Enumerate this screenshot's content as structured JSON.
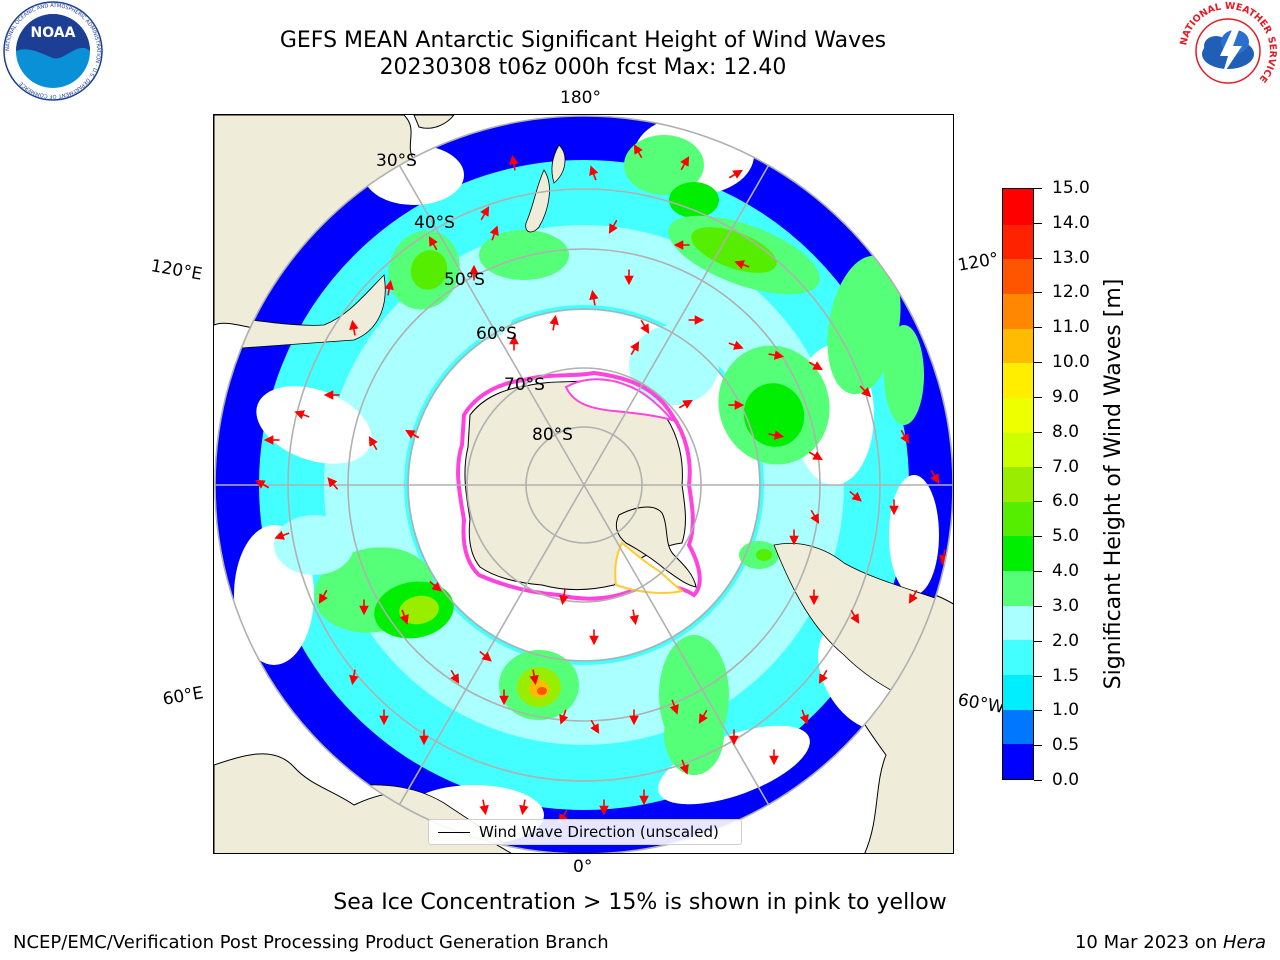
{
  "header": {
    "title_line1": "GEFS MEAN Antarctic Significant Height of Wind Waves",
    "title_line2": "20230308 t06z 000h fcst   Max: 12.40"
  },
  "logos": {
    "noaa": {
      "center_text": "NOAA",
      "ring_text": "NATIONAL OCEANIC AND ATMOSPHERIC ADMINISTRATION · U.S. DEPARTMENT OF COMMERCE",
      "icon": "noaa-seagull-logo",
      "colors": {
        "dark": "#1c3f95",
        "light": "#0a90d6"
      }
    },
    "nws": {
      "ring_text": "NATIONAL WEATHER SERVICE",
      "icon": "nws-cloud-lightning-logo",
      "colors": {
        "ring": "#e31b23",
        "cloud": "#1f5fb8"
      }
    }
  },
  "map": {
    "projection": "south-polar-stereographic",
    "longitude_labels": {
      "top": "180°",
      "left_upper": "120°E",
      "right_upper": "120°",
      "left_lower": "60°E",
      "right_lower": "60°W",
      "bottom": "0°"
    },
    "latitude_labels": [
      "30°S",
      "40°S",
      "50°S",
      "60°S",
      "70°S",
      "80°S"
    ],
    "colors": {
      "land": "#efedda",
      "ocean": "#ffffff",
      "grid": "#b0b0b0",
      "arrow": "#ff0000",
      "sea_ice": "#ff44dd",
      "coast": "#000000"
    },
    "legend": {
      "label": "Wind Wave Direction (unscaled)"
    }
  },
  "colorbar": {
    "label": "Significant Height of Wind Waves [m]",
    "ticks": [
      "0.0",
      "0.5",
      "1.0",
      "1.5",
      "2.0",
      "3.0",
      "4.0",
      "5.0",
      "6.0",
      "7.0",
      "8.0",
      "9.0",
      "10.0",
      "11.0",
      "12.0",
      "13.0",
      "14.0",
      "15.0"
    ],
    "colors": [
      "#0000ff",
      "#0077ff",
      "#00eeff",
      "#44ffff",
      "#aaffff",
      "#55ff77",
      "#00ee00",
      "#55ee00",
      "#99ee00",
      "#ccff00",
      "#eeff00",
      "#ffee00",
      "#ffbb00",
      "#ff8800",
      "#ff5500",
      "#ff2200",
      "#ff0000"
    ]
  },
  "caption": "Sea Ice Concentration > 15% is shown in pink to yellow",
  "footer": {
    "left": "NCEP/EMC/Verification Post Processing Product Generation Branch",
    "right_prefix": "10 Mar 2023 on ",
    "right_host": "Hera"
  }
}
